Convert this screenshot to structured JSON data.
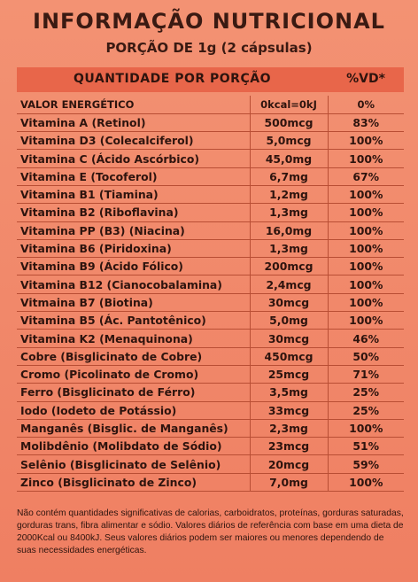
{
  "title": "INFORMAÇÃO NUTRICIONAL",
  "subtitle": "PORÇÃO DE 1g (2 cápsulas)",
  "header": {
    "quantity": "QUANTIDADE POR PORÇÃO",
    "vd": "%VD*"
  },
  "rows": [
    {
      "name": "VALOR ENERGÉTICO",
      "amount": "0kcal=0kJ",
      "vd": "0%"
    },
    {
      "name": "Vitamina A (Retinol)",
      "amount": "500mcg",
      "vd": "83%"
    },
    {
      "name": "Vitamina D3 (Colecalciferol)",
      "amount": "5,0mcg",
      "vd": "100%"
    },
    {
      "name": "Vitamina C (Ácido Ascórbico)",
      "amount": "45,0mg",
      "vd": "100%"
    },
    {
      "name": "Vitamina E (Tocoferol)",
      "amount": "6,7mg",
      "vd": "67%"
    },
    {
      "name": "Vitamina B1 (Tiamina)",
      "amount": "1,2mg",
      "vd": "100%"
    },
    {
      "name": "Vitamina B2 (Riboflavina)",
      "amount": "1,3mg",
      "vd": "100%"
    },
    {
      "name": "Vitamina PP (B3) (Niacina)",
      "amount": "16,0mg",
      "vd": "100%"
    },
    {
      "name": "Vitamina B6 (Piridoxina)",
      "amount": "1,3mg",
      "vd": "100%"
    },
    {
      "name": "Vitamina B9 (Ácido Fólico)",
      "amount": "200mcg",
      "vd": "100%"
    },
    {
      "name": "Vitamina B12 (Cianocobalamina)",
      "amount": "2,4mcg",
      "vd": "100%"
    },
    {
      "name": "Vitmaina B7 (Biotina)",
      "amount": "30mcg",
      "vd": "100%"
    },
    {
      "name": "Vitamina B5 (Ác. Pantotênico)",
      "amount": "5,0mg",
      "vd": "100%"
    },
    {
      "name": "Vitamina K2 (Menaquinona)",
      "amount": "30mcg",
      "vd": "46%"
    },
    {
      "name": "Cobre (Bisglicinato de Cobre)",
      "amount": "450mcg",
      "vd": "50%"
    },
    {
      "name": "Cromo (Picolinato de Cromo)",
      "amount": "25mcg",
      "vd": "71%"
    },
    {
      "name": "Ferro (Bisglicinato de Férro)",
      "amount": "3,5mg",
      "vd": "25%"
    },
    {
      "name": "Iodo (Iodeto de Potássio)",
      "amount": "33mcg",
      "vd": "25%"
    },
    {
      "name": "Manganês (Bisglic. de Manganês)",
      "amount": "2,3mg",
      "vd": "100%"
    },
    {
      "name": "Molibdênio (Molibdato de Sódio)",
      "amount": "23mcg",
      "vd": "51%"
    },
    {
      "name": "Selênio (Bisglicinato de Selênio)",
      "amount": "20mcg",
      "vd": "59%"
    },
    {
      "name": "Zinco (Bisglicinato de Zinco)",
      "amount": "7,0mg",
      "vd": "100%"
    }
  ],
  "footer": "Não contém quantidades significativas de calorias, carboidratos, proteínas, gorduras saturadas, gorduras trans, fibra alimentar e sódio. Valores diários de referência com base em uma dieta de 2000Kcal ou 8400kJ. Seus valores diários podem ser maiores ou menores dependendo de suas necessidades energéticas."
}
